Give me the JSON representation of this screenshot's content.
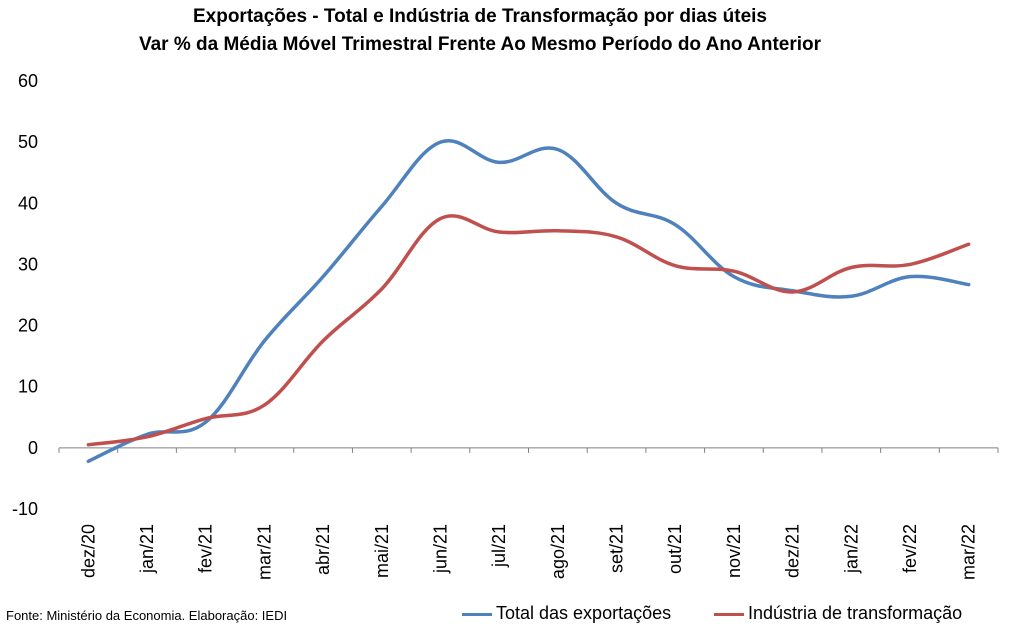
{
  "chart_data": {
    "type": "line",
    "title": "Exportações - Total e Indústria de Transformação por dias úteis",
    "subtitle": "Var % da Média Móvel Trimestral Frente Ao Mesmo Período do Ano Anterior",
    "categories": [
      "dez/20",
      "jan/21",
      "fev/21",
      "mar/21",
      "abr/21",
      "mai/21",
      "jun/21",
      "jul/21",
      "ago/21",
      "set/21",
      "out/21",
      "nov/21",
      "dez/21",
      "jan/22",
      "fev/22",
      "mar/22"
    ],
    "series": [
      {
        "name": "Total das exportações",
        "color": "#4f81bd",
        "values": [
          -2.2,
          2.2,
          4.2,
          17.5,
          28.0,
          39.5,
          50.0,
          46.7,
          48.8,
          40.0,
          36.5,
          28.0,
          25.7,
          24.8,
          28.0,
          26.7
        ]
      },
      {
        "name": "Indústria de transformação",
        "color": "#c0504d",
        "values": [
          0.5,
          1.8,
          4.8,
          7.0,
          17.5,
          26.0,
          37.5,
          35.3,
          35.5,
          34.5,
          29.8,
          28.9,
          25.5,
          29.5,
          30.0,
          33.3
        ]
      }
    ],
    "ylim": [
      -10,
      60
    ],
    "yticks": [
      "-10",
      "0",
      "10",
      "20",
      "30",
      "40",
      "50",
      "60"
    ],
    "grid": false,
    "legend_position": "bottom-right"
  },
  "source": "Fonte: Ministério da Economia. Elaboração: IEDI"
}
